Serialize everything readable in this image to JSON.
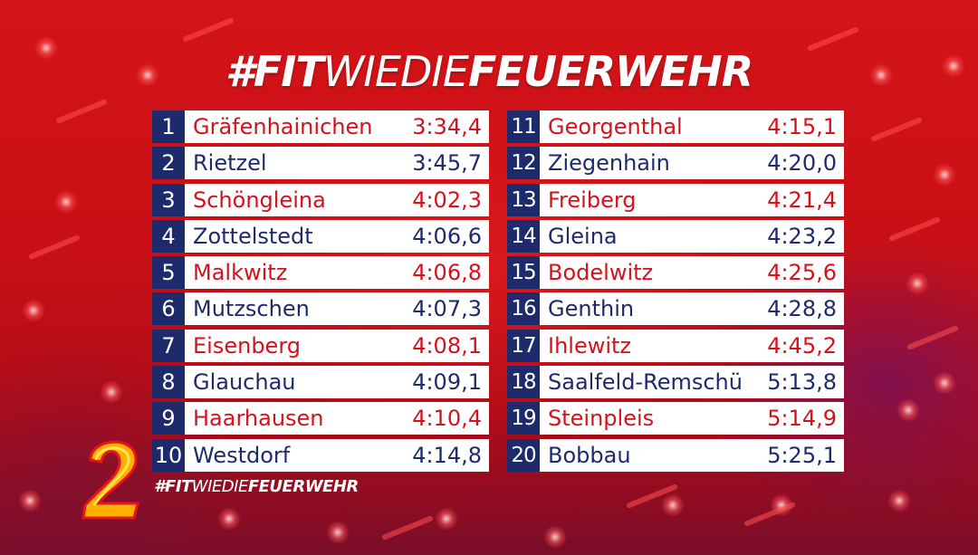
{
  "title": {
    "part1": "#FIT",
    "part2": "WIE",
    "part3": "DIE",
    "part4": "FEUERWEHR"
  },
  "footer_logo": {
    "part1": "#FIT",
    "part2": "WIE",
    "part3": "DIE",
    "part4": "FEUERWEHR"
  },
  "channel_logo": {
    "icon": "zdf-neo-2-logo",
    "colors": [
      "#ff8a00",
      "#ffd400",
      "#e8141b"
    ]
  },
  "colors": {
    "background": "#c81016",
    "rank_bg": "#1d2a6b",
    "red_text": "#d4121b",
    "blue_text": "#1d2a6b"
  },
  "ranking": {
    "left": [
      {
        "rank": "1",
        "name": "Gräfenhainichen",
        "time": "3:34,4",
        "color": "red"
      },
      {
        "rank": "2",
        "name": "Rietzel",
        "time": "3:45,7",
        "color": "blue"
      },
      {
        "rank": "3",
        "name": "Schöngleina",
        "time": "4:02,3",
        "color": "red"
      },
      {
        "rank": "4",
        "name": "Zottelstedt",
        "time": "4:06,6",
        "color": "blue"
      },
      {
        "rank": "5",
        "name": "Malkwitz",
        "time": "4:06,8",
        "color": "red"
      },
      {
        "rank": "6",
        "name": "Mutzschen",
        "time": "4:07,3",
        "color": "blue"
      },
      {
        "rank": "7",
        "name": "Eisenberg",
        "time": "4:08,1",
        "color": "red"
      },
      {
        "rank": "8",
        "name": "Glauchau",
        "time": "4:09,1",
        "color": "blue"
      },
      {
        "rank": "9",
        "name": "Haarhausen",
        "time": "4:10,4",
        "color": "red"
      },
      {
        "rank": "10",
        "name": "Westdorf",
        "time": "4:14,8",
        "color": "blue"
      }
    ],
    "right": [
      {
        "rank": "11",
        "name": "Georgenthal",
        "time": "4:15,1",
        "color": "red"
      },
      {
        "rank": "12",
        "name": "Ziegenhain",
        "time": "4:20,0",
        "color": "blue"
      },
      {
        "rank": "13",
        "name": "Freiberg",
        "time": "4:21,4",
        "color": "red"
      },
      {
        "rank": "14",
        "name": "Gleina",
        "time": "4:23,2",
        "color": "blue"
      },
      {
        "rank": "15",
        "name": "Bodelwitz",
        "time": "4:25,6",
        "color": "red"
      },
      {
        "rank": "16",
        "name": "Genthin",
        "time": "4:28,8",
        "color": "blue"
      },
      {
        "rank": "17",
        "name": "Ihlewitz",
        "time": "4:45,2",
        "color": "red"
      },
      {
        "rank": "18",
        "name": "Saalfeld-Remschü",
        "time": "5:13,8",
        "color": "blue"
      },
      {
        "rank": "19",
        "name": "Steinpleis",
        "time": "5:14,9",
        "color": "red"
      },
      {
        "rank": "20",
        "name": "Bobbau",
        "time": "5:25,1",
        "color": "blue"
      }
    ]
  }
}
